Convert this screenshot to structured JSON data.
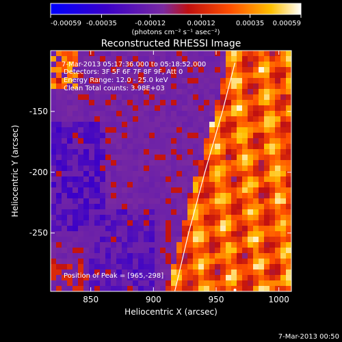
{
  "colorbar": {
    "ticks": [
      "-0.00059",
      "-0.00035",
      "-0.00012",
      "0.00012",
      "0.00035",
      "0.00059"
    ],
    "tick_values": [
      -0.00059,
      -0.00035,
      -0.00012,
      0.00012,
      0.00035,
      0.00059
    ],
    "range": [
      -0.00059,
      0.00059
    ],
    "unit_label": "(photons cm⁻² s⁻¹ asec⁻²)"
  },
  "chart_data": {
    "type": "heatmap",
    "title": "Reconstructed RHESSI Image",
    "xlabel": "Heliocentric X (arcsec)",
    "ylabel": "Heliocentric Y (arcsec)",
    "xlim": [
      818,
      1010
    ],
    "ylim": [
      -298,
      -100
    ],
    "xticks": [
      "850",
      "900",
      "950",
      "1000"
    ],
    "xtick_values": [
      850,
      900,
      950,
      1000
    ],
    "yticks": [
      "-150",
      "-200",
      "-250"
    ],
    "ytick_values": [
      -150,
      -200,
      -250
    ],
    "limb_curve": [
      [
        917,
        -298
      ],
      [
        928,
        -250
      ],
      [
        941,
        -200
      ],
      [
        955,
        -150
      ],
      [
        965,
        -110
      ]
    ],
    "peak": [
      965,
      -298
    ]
  },
  "annotations": {
    "time_range": "7-Mar-2013 05:17:36.000 to 05:18:52.000",
    "detectors": "Detectors: 3F 5F 6F 7F 8F 9F, Att 0",
    "energy": "Energy Range: 12.0 - 25.0 keV",
    "clean": "Clean     Total counts: 3.98E+03",
    "peak_text": "Position of Peak = [965,-298]"
  },
  "footer_timestamp": "7-Mar-2013 00:50"
}
